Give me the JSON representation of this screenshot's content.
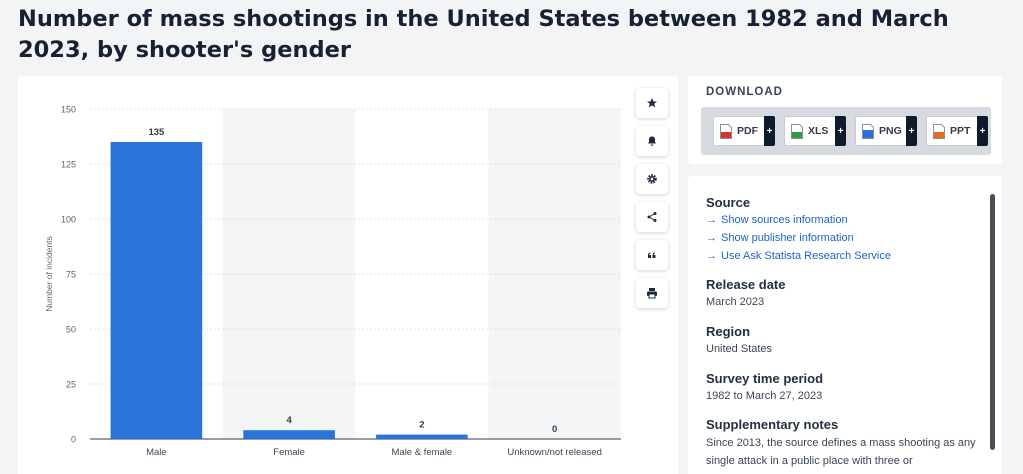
{
  "page_title": "Number of mass shootings in the United States between 1982 and March 2023, by shooter's gender",
  "colors": {
    "bar": "#2a74d9",
    "alt_band": "#f4f5f7",
    "link": "#1c64c8",
    "dark": "#0f1b2d"
  },
  "toolbar": [
    {
      "name": "star-icon"
    },
    {
      "name": "bell-icon"
    },
    {
      "name": "gear-icon"
    },
    {
      "name": "share-icon"
    },
    {
      "name": "quote-icon"
    },
    {
      "name": "print-icon"
    }
  ],
  "download": {
    "title": "DOWNLOAD",
    "buttons": [
      {
        "label": "PDF",
        "plus": "+",
        "icon": "pdf-file-icon",
        "color": "#d9342b"
      },
      {
        "label": "XLS",
        "plus": "+",
        "icon": "xls-file-icon",
        "color": "#2e9b3e"
      },
      {
        "label": "PNG",
        "plus": "+",
        "icon": "png-file-icon",
        "color": "#2a74d9"
      },
      {
        "label": "PPT",
        "plus": "+",
        "icon": "ppt-file-icon",
        "color": "#e36c1f"
      }
    ]
  },
  "info": {
    "source_heading": "Source",
    "links": [
      "Show sources information",
      "Show publisher information",
      "Use Ask Statista Research Service"
    ],
    "release_heading": "Release date",
    "release_value": "March 2023",
    "region_heading": "Region",
    "region_value": "United States",
    "survey_heading": "Survey time period",
    "survey_value": "1982 to March 27, 2023",
    "notes_heading": "Supplementary notes",
    "notes_text": "Since 2013, the source defines a mass shooting as any single attack in a public place with three or"
  },
  "chart_data": {
    "type": "bar",
    "categories": [
      "Male",
      "Female",
      "Male & female",
      "Unknown/not released"
    ],
    "values": [
      135,
      4,
      2,
      0
    ],
    "data_labels": [
      "135",
      "4",
      "2",
      "0"
    ],
    "ylabel": "Number of incidents",
    "ylim": [
      0,
      150
    ],
    "yticks": [
      0,
      25,
      50,
      75,
      100,
      125,
      150
    ],
    "grid": true
  }
}
